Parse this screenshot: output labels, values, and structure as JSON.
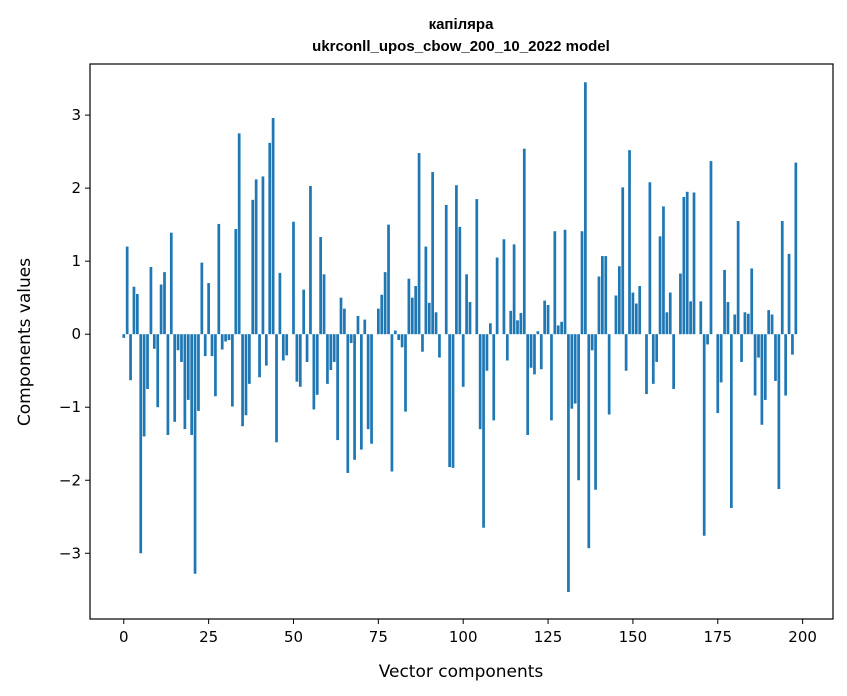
{
  "chart_data": {
    "type": "bar",
    "title": [
      "капіляра",
      "ukrconll_upos_cbow_200_10_2022 model"
    ],
    "xlabel": "Vector components",
    "ylabel": "Components values",
    "xlim": [
      -9.95,
      208.95
    ],
    "ylim": [
      -3.9,
      3.7
    ],
    "xticks": [
      0,
      25,
      50,
      75,
      100,
      125,
      150,
      175,
      200
    ],
    "yticks": [
      -3,
      -2,
      -1,
      0,
      1,
      2,
      3
    ],
    "ytick_labels": [
      "−3",
      "−2",
      "−1",
      "0",
      "1",
      "2",
      "3"
    ],
    "grid": false,
    "bar_color": "#1f77b4",
    "values": [
      -0.05,
      1.2,
      -0.63,
      0.65,
      0.55,
      -3.0,
      -1.4,
      -0.75,
      0.92,
      -0.2,
      -1.0,
      0.68,
      0.85,
      -1.38,
      1.39,
      -1.2,
      -0.22,
      -0.38,
      -1.3,
      -0.9,
      -1.38,
      -3.28,
      -1.05,
      0.98,
      -0.3,
      0.7,
      -0.3,
      -0.85,
      1.51,
      -0.21,
      -0.1,
      -0.08,
      -0.99,
      1.44,
      2.75,
      -1.26,
      -1.11,
      -0.68,
      1.84,
      2.12,
      -0.59,
      2.16,
      -0.43,
      2.62,
      2.96,
      -1.48,
      0.84,
      -0.36,
      -0.29,
      0.0,
      1.54,
      -0.65,
      -0.72,
      0.61,
      -0.38,
      2.03,
      -1.03,
      -0.83,
      1.33,
      0.82,
      -0.68,
      -0.49,
      -0.38,
      -1.45,
      0.5,
      0.35,
      -1.9,
      -0.12,
      -1.72,
      0.25,
      -1.58,
      0.2,
      -1.3,
      -1.5,
      0.0,
      0.35,
      0.54,
      0.85,
      1.5,
      -1.88,
      0.05,
      -0.08,
      -0.18,
      -1.06,
      0.76,
      0.5,
      0.66,
      2.48,
      -0.24,
      1.2,
      0.43,
      2.22,
      0.3,
      -0.32,
      0.0,
      1.77,
      -1.82,
      -1.83,
      2.04,
      1.47,
      -0.72,
      0.82,
      0.44,
      0.0,
      1.85,
      -1.3,
      -2.65,
      -0.5,
      0.15,
      -1.18,
      1.05,
      0.0,
      1.3,
      -0.36,
      0.32,
      1.23,
      0.19,
      0.29,
      2.54,
      -1.38,
      -0.46,
      -0.55,
      0.04,
      -0.48,
      0.46,
      0.4,
      -1.18,
      1.41,
      0.12,
      0.17,
      1.43,
      -3.53,
      -1.02,
      -0.95,
      -2.0,
      1.41,
      3.45,
      -2.93,
      -0.22,
      -2.13,
      0.79,
      1.07,
      1.07,
      -1.1,
      0.0,
      0.53,
      0.93,
      2.01,
      -0.5,
      2.52,
      0.57,
      0.42,
      0.66,
      0.0,
      -0.82,
      2.08,
      -0.68,
      -0.38,
      1.34,
      1.75,
      0.3,
      0.57,
      -0.75,
      0.0,
      0.83,
      1.88,
      1.95,
      0.45,
      1.94,
      0.0,
      0.45,
      -2.76,
      -0.14,
      2.37,
      0.0,
      -1.08,
      -0.66,
      0.88,
      0.44,
      -2.38,
      0.27,
      1.55,
      -0.38,
      0.3,
      0.28,
      0.9,
      -0.84,
      -0.32,
      -1.24,
      -0.9,
      0.33,
      0.27,
      -0.64,
      -2.12,
      1.55,
      -0.84,
      1.1,
      -0.28,
      2.35
    ]
  }
}
